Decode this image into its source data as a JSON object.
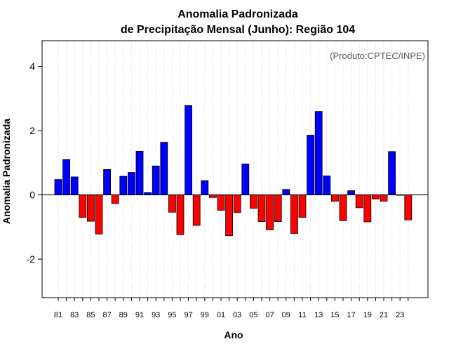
{
  "chart_data": {
    "type": "bar",
    "title": "Anomalia Padronizada",
    "subtitle": "de Precipitação Mensal (Junho): Região 104",
    "xlabel": "Ano",
    "ylabel": "Anomalia Padronizada",
    "credit": "(Produto:CPTEC/INPE)",
    "ylim": [
      -3.2,
      4.8
    ],
    "yticks": [
      -2,
      0,
      2,
      4
    ],
    "yticklabels": [
      "-2",
      "0",
      "2",
      "4"
    ],
    "grid": "vertical-dotted",
    "categories": [
      "1981",
      "1982",
      "1983",
      "1984",
      "1985",
      "1986",
      "1987",
      "1988",
      "1989",
      "1990",
      "1991",
      "1992",
      "1993",
      "1994",
      "1995",
      "1996",
      "1997",
      "1998",
      "1999",
      "2000",
      "2001",
      "2002",
      "2003",
      "2004",
      "2005",
      "2006",
      "2007",
      "2008",
      "2009",
      "2010",
      "2011",
      "2012",
      "2013",
      "2014",
      "2015",
      "2016",
      "2017",
      "2018",
      "2019",
      "2020",
      "2021",
      "2022",
      "2023",
      "2024"
    ],
    "xticklabels": [
      "81",
      "83",
      "85",
      "87",
      "89",
      "91",
      "93",
      "95",
      "97",
      "99",
      "01",
      "03",
      "05",
      "07",
      "09",
      "11",
      "13",
      "15",
      "17",
      "19",
      "21",
      "23"
    ],
    "values": [
      0.48,
      1.1,
      0.56,
      -0.7,
      -0.82,
      -1.22,
      0.79,
      -0.27,
      0.58,
      0.7,
      1.36,
      0.07,
      0.9,
      1.64,
      -0.54,
      -1.24,
      2.78,
      -0.95,
      0.44,
      -0.08,
      -0.48,
      -1.27,
      -0.55,
      0.96,
      -0.42,
      -0.83,
      -1.09,
      -0.83,
      0.17,
      -1.2,
      -0.7,
      1.86,
      2.6,
      0.59,
      -0.2,
      -0.8,
      0.13,
      -0.4,
      -0.84,
      -0.13,
      -0.2,
      1.35,
      0.0,
      -0.78
    ],
    "colors": {
      "positive": "#0000ff",
      "negative": "#ff0000"
    }
  }
}
